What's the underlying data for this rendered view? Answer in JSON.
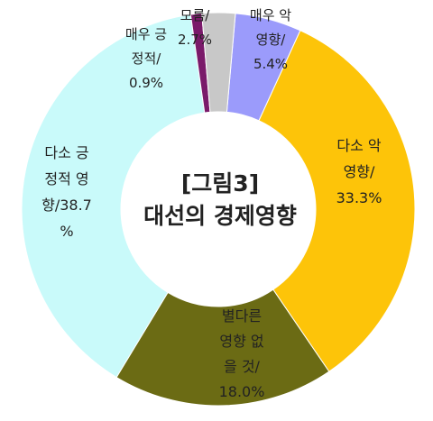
{
  "chart_data": {
    "type": "pie",
    "donut": true,
    "center_label": [
      "[그림3]",
      "대선의 경제영향"
    ],
    "slices": [
      {
        "label": [
          "매우 악",
          "영향/",
          "5.4%"
        ],
        "value": 5.4,
        "color": "#9b9bfb"
      },
      {
        "label": [
          "다소 악",
          "영향/",
          "33.3%"
        ],
        "value": 33.3,
        "color": "#fdc409"
      },
      {
        "label": [
          "별다른",
          "영향 없",
          "을 것/",
          "18.0%"
        ],
        "value": 18.0,
        "color": "#6b6b14"
      },
      {
        "label": [
          "다소 긍",
          "정적 영",
          "향/38.7",
          "%"
        ],
        "value": 38.7,
        "color": "#c9fafa"
      },
      {
        "label": [
          "매우 긍",
          "정적/",
          "0.9%"
        ],
        "value": 0.9,
        "color": "#7a1a6a"
      },
      {
        "label": [
          "모름/",
          "2.7%"
        ],
        "value": 2.7,
        "color": "#c8c8c8"
      }
    ],
    "legend": "none"
  }
}
